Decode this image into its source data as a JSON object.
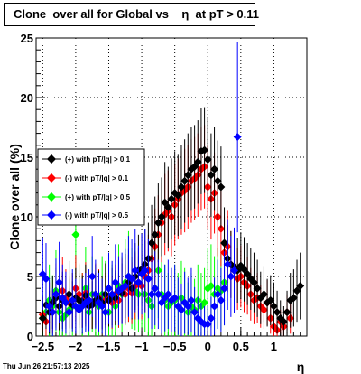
{
  "title": "Clone  over all for Global vs    η  at pT > 0.11",
  "timestamp": "Thu Jun 26 21:57:13 2025",
  "chart_data": {
    "type": "scatter",
    "title": "Clone  over all for Global vs    η  at pT > 0.11",
    "xlabel": "η",
    "ylabel": "Clone  over all (%)",
    "xlim": [
      -2.6,
      1.5
    ],
    "ylim": [
      0,
      25
    ],
    "xticks": [
      -2.5,
      -2,
      -1.5,
      -1,
      -0.5,
      0,
      0.5,
      1
    ],
    "xtick_labels": [
      "−2.5",
      "−2",
      "−1.5",
      "−1",
      "−0.5",
      "0",
      "0.5",
      "1"
    ],
    "yticks": [
      0,
      5,
      10,
      15,
      20,
      25
    ],
    "ytick_labels": [
      "0",
      "5",
      "10",
      "15",
      "20",
      "25"
    ],
    "grid": true,
    "legend_position": "middle-left",
    "series": [
      {
        "name": "(+) with pT/|q| > 0.1",
        "color": "#000000",
        "x": [
          -2.5,
          -2.45,
          -2.4,
          -2.35,
          -2.3,
          -2.25,
          -2.2,
          -2.15,
          -2.1,
          -2.05,
          -2.0,
          -1.95,
          -1.9,
          -1.85,
          -1.8,
          -1.75,
          -1.7,
          -1.65,
          -1.6,
          -1.55,
          -1.5,
          -1.45,
          -1.4,
          -1.35,
          -1.3,
          -1.25,
          -1.2,
          -1.15,
          -1.1,
          -1.05,
          -1.0,
          -0.95,
          -0.9,
          -0.85,
          -0.8,
          -0.75,
          -0.7,
          -0.65,
          -0.6,
          -0.55,
          -0.5,
          -0.45,
          -0.4,
          -0.35,
          -0.3,
          -0.25,
          -0.2,
          -0.15,
          -0.1,
          -0.05,
          0.0,
          0.05,
          0.1,
          0.15,
          0.2,
          0.25,
          0.3,
          0.35,
          0.4,
          0.45,
          0.5,
          0.55,
          0.6,
          0.65,
          0.7,
          0.75,
          0.8,
          0.85,
          0.9,
          0.95,
          1.0,
          1.05,
          1.1,
          1.15,
          1.2,
          1.25,
          1.3,
          1.35,
          1.4
        ],
        "y": [
          1.5,
          2.6,
          2.0,
          2.8,
          3.2,
          2.5,
          3.0,
          2.8,
          3.5,
          2.6,
          3.2,
          3.0,
          2.9,
          3.4,
          2.5,
          2.6,
          3.0,
          3.1,
          2.8,
          3.5,
          3.0,
          3.3,
          3.2,
          3.8,
          3.6,
          4.2,
          4.5,
          4.0,
          5.0,
          5.5,
          5.6,
          6.0,
          6.5,
          7.8,
          8.5,
          9.5,
          10.0,
          11.2,
          10.8,
          11.5,
          12.0,
          11.8,
          12.5,
          13.0,
          13.5,
          14.0,
          14.2,
          14.6,
          15.5,
          15.6,
          14.8,
          13.5,
          14.0,
          13.0,
          12.5,
          7.8,
          6.5,
          6.0,
          5.8,
          5.5,
          5.9,
          5.6,
          5.2,
          4.8,
          4.5,
          4.0,
          3.2,
          3.5,
          2.8,
          3.0,
          2.5,
          2.0,
          1.5,
          1.2,
          2.0,
          3.0,
          3.2,
          3.8,
          4.2
        ],
        "err": [
          1.5,
          2.0,
          1.8,
          2.2,
          2.5,
          2.0,
          2.4,
          2.2,
          2.8,
          2.0,
          2.5,
          2.3,
          2.2,
          2.6,
          2.0,
          2.0,
          2.3,
          2.4,
          2.2,
          2.6,
          2.2,
          2.4,
          2.3,
          2.6,
          2.5,
          2.7,
          2.8,
          2.6,
          2.8,
          3.0,
          3.0,
          3.0,
          3.0,
          3.2,
          3.2,
          3.3,
          3.3,
          3.4,
          3.4,
          3.4,
          3.5,
          3.4,
          3.5,
          3.5,
          3.5,
          3.5,
          3.5,
          3.5,
          3.6,
          3.6,
          3.5,
          3.5,
          3.5,
          3.4,
          3.4,
          3.0,
          2.8,
          2.8,
          2.8,
          2.7,
          2.8,
          2.7,
          2.6,
          2.6,
          2.5,
          2.4,
          2.2,
          2.3,
          2.0,
          2.1,
          2.0,
          1.8,
          1.5,
          1.3,
          1.8,
          2.3,
          2.4,
          2.6,
          2.8
        ]
      },
      {
        "name": "(-) with pT/|q| > 0.1",
        "color": "#ff0000",
        "x": [
          -2.5,
          -2.45,
          -2.4,
          -2.35,
          -2.3,
          -2.25,
          -2.2,
          -2.15,
          -2.1,
          -2.05,
          -2.0,
          -1.95,
          -1.9,
          -1.85,
          -1.8,
          -1.75,
          -1.7,
          -1.65,
          -1.6,
          -1.55,
          -1.5,
          -1.45,
          -1.4,
          -1.35,
          -1.3,
          -1.25,
          -1.2,
          -1.15,
          -1.1,
          -1.05,
          -1.0,
          -0.95,
          -0.9,
          -0.85,
          -0.8,
          -0.75,
          -0.7,
          -0.65,
          -0.6,
          -0.55,
          -0.5,
          -0.45,
          -0.4,
          -0.35,
          -0.3,
          -0.25,
          -0.2,
          -0.15,
          -0.1,
          -0.05,
          0.0,
          0.05,
          0.1,
          0.15,
          0.2,
          0.25,
          0.3,
          0.35,
          0.4,
          0.45,
          0.5,
          0.55,
          0.6,
          0.65,
          0.7,
          0.75,
          0.8,
          0.85,
          0.9,
          0.95,
          1.0,
          1.05,
          1.1,
          1.15,
          1.2,
          1.25
        ],
        "y": [
          1.8,
          1.2,
          2.5,
          2.0,
          3.5,
          2.5,
          3.8,
          3.2,
          2.8,
          3.0,
          4.0,
          3.5,
          3.0,
          3.6,
          3.0,
          2.8,
          3.5,
          3.2,
          2.6,
          3.0,
          3.2,
          2.8,
          3.5,
          3.0,
          3.8,
          3.5,
          4.0,
          3.6,
          4.2,
          4.5,
          4.2,
          5.0,
          5.5,
          6.5,
          7.5,
          8.5,
          9.5,
          10.2,
          10.5,
          10.0,
          11.0,
          11.5,
          12.0,
          12.2,
          12.5,
          13.0,
          13.2,
          13.5,
          14.0,
          14.2,
          12.5,
          11.5,
          12.0,
          10.0,
          9.0,
          7.0,
          7.5,
          6.0,
          5.5,
          4.8,
          5.0,
          4.5,
          4.2,
          3.5,
          3.0,
          3.2,
          2.5,
          2.2,
          2.8,
          1.5,
          0.8,
          0.5,
          1.2,
          0.8,
          2.0,
          1.5
        ],
        "err": [
          1.5,
          1.2,
          2.0,
          1.8,
          2.6,
          2.0,
          2.8,
          2.4,
          2.2,
          2.3,
          2.8,
          2.6,
          2.3,
          2.6,
          2.3,
          2.2,
          2.6,
          2.4,
          2.1,
          2.3,
          2.4,
          2.2,
          2.5,
          2.3,
          2.7,
          2.5,
          2.8,
          2.6,
          2.8,
          2.9,
          2.8,
          3.0,
          3.0,
          3.2,
          3.2,
          3.3,
          3.3,
          3.4,
          3.4,
          3.3,
          3.4,
          3.4,
          3.5,
          3.5,
          3.5,
          3.5,
          3.5,
          3.5,
          3.5,
          3.5,
          3.5,
          3.4,
          3.4,
          3.3,
          3.2,
          3.0,
          3.0,
          2.8,
          2.7,
          2.6,
          2.6,
          2.5,
          2.4,
          2.2,
          2.0,
          2.1,
          1.8,
          1.6,
          1.9,
          1.3,
          0.8,
          0.6,
          1.0,
          0.8,
          1.5,
          1.3
        ]
      },
      {
        "name": "(+) with pT/|q| > 0.5",
        "color": "#00ff00",
        "x": [
          -2.5,
          -2.45,
          -2.4,
          -2.35,
          -2.3,
          -2.25,
          -2.2,
          -2.15,
          -2.1,
          -2.05,
          -2.0,
          -1.95,
          -1.9,
          -1.85,
          -1.8,
          -1.75,
          -1.7,
          -1.65,
          -1.6,
          -1.55,
          -1.5,
          -1.45,
          -1.4,
          -1.35,
          -1.3,
          -1.25,
          -1.2,
          -1.15,
          -1.1,
          -1.05,
          -1.0,
          -0.95,
          -0.9,
          -0.85,
          -0.8,
          -0.75,
          -0.7,
          -0.65,
          -0.6,
          -0.55,
          -0.5,
          -0.45,
          -0.4,
          -0.35,
          -0.3,
          -0.25,
          -0.2,
          -0.15,
          -0.1,
          -0.05,
          0.0,
          0.05,
          0.1,
          0.15,
          0.2,
          0.25
        ],
        "y": [
          1.5,
          2.0,
          3.0,
          2.5,
          3.8,
          2.0,
          1.5,
          1.8,
          2.2,
          2.5,
          8.5,
          3.0,
          2.5,
          4.0,
          2.0,
          3.5,
          3.0,
          2.5,
          3.5,
          3.2,
          2.0,
          3.0,
          2.5,
          4.2,
          3.5,
          4.5,
          5.0,
          4.0,
          3.8,
          3.5,
          4.2,
          3.5,
          3.0,
          2.5,
          4.0,
          5.5,
          3.5,
          3.0,
          2.5,
          2.8,
          3.0,
          2.5,
          3.2,
          2.8,
          2.0,
          2.5,
          2.2,
          3.0,
          2.5,
          2.8,
          4.0,
          4.2,
          3.5,
          4.0,
          3.8,
          4.5
        ],
        "err": [
          2.0,
          2.5,
          3.0,
          2.6,
          3.4,
          2.5,
          2.0,
          2.3,
          2.6,
          2.8,
          5.0,
          3.0,
          2.8,
          3.5,
          2.4,
          3.2,
          3.0,
          2.8,
          3.2,
          3.1,
          2.5,
          3.0,
          2.8,
          3.5,
          3.2,
          3.6,
          3.8,
          3.4,
          3.3,
          3.2,
          3.5,
          3.2,
          3.0,
          2.8,
          3.4,
          4.0,
          3.2,
          3.0,
          2.8,
          2.9,
          3.0,
          2.8,
          3.1,
          2.9,
          2.5,
          2.8,
          2.6,
          3.0,
          2.8,
          2.9,
          3.4,
          3.5,
          3.2,
          3.4,
          3.3,
          3.6
        ]
      },
      {
        "name": "(-) with pT/|q| > 0.5",
        "color": "#0000ff",
        "x": [
          -2.5,
          -2.45,
          -2.4,
          -2.35,
          -2.3,
          -2.25,
          -2.2,
          -2.15,
          -2.1,
          -2.05,
          -2.0,
          -1.95,
          -1.9,
          -1.85,
          -1.8,
          -1.75,
          -1.7,
          -1.65,
          -1.6,
          -1.55,
          -1.5,
          -1.45,
          -1.4,
          -1.35,
          -1.3,
          -1.25,
          -1.2,
          -1.15,
          -1.1,
          -1.05,
          -1.0,
          -0.95,
          -0.9,
          -0.85,
          -0.8,
          -0.75,
          -0.7,
          -0.65,
          -0.6,
          -0.55,
          -0.5,
          -0.45,
          -0.4,
          -0.35,
          -0.3,
          -0.25,
          -0.2,
          -0.15,
          -0.1,
          -0.05,
          0.0,
          0.05,
          0.1,
          0.15,
          0.2,
          0.25,
          0.3,
          0.35,
          0.4,
          0.45
        ],
        "y": [
          5.2,
          4.8,
          2.5,
          2.0,
          3.5,
          4.5,
          3.2,
          2.8,
          2.0,
          3.0,
          2.5,
          2.2,
          2.5,
          2.8,
          3.0,
          5.0,
          3.5,
          2.8,
          2.5,
          2.0,
          4.0,
          3.5,
          4.5,
          3.8,
          4.0,
          4.2,
          5.0,
          4.8,
          5.5,
          4.5,
          5.2,
          5.5,
          4.8,
          3.5,
          4.0,
          3.5,
          2.8,
          3.2,
          3.5,
          3.0,
          3.2,
          2.5,
          2.2,
          2.8,
          2.5,
          3.0,
          2.0,
          1.5,
          1.2,
          1.0,
          1.0,
          1.5,
          2.5,
          3.5,
          3.0,
          4.0,
          6.0,
          5.0,
          5.5,
          16.7
        ],
        "err": [
          3.0,
          3.0,
          2.2,
          2.0,
          3.0,
          3.4,
          2.8,
          2.6,
          2.0,
          2.6,
          2.3,
          2.1,
          2.3,
          2.5,
          2.6,
          3.4,
          2.9,
          2.5,
          2.3,
          2.0,
          3.0,
          2.8,
          3.2,
          2.9,
          3.0,
          3.1,
          3.4,
          3.3,
          3.5,
          3.1,
          3.4,
          3.5,
          3.3,
          2.9,
          3.1,
          2.9,
          2.6,
          2.8,
          2.9,
          2.7,
          2.8,
          2.4,
          2.2,
          2.6,
          2.4,
          2.7,
          2.1,
          1.8,
          1.6,
          1.5,
          1.5,
          1.8,
          2.4,
          2.9,
          2.7,
          3.1,
          3.8,
          3.4,
          3.6,
          8.0
        ]
      }
    ]
  }
}
